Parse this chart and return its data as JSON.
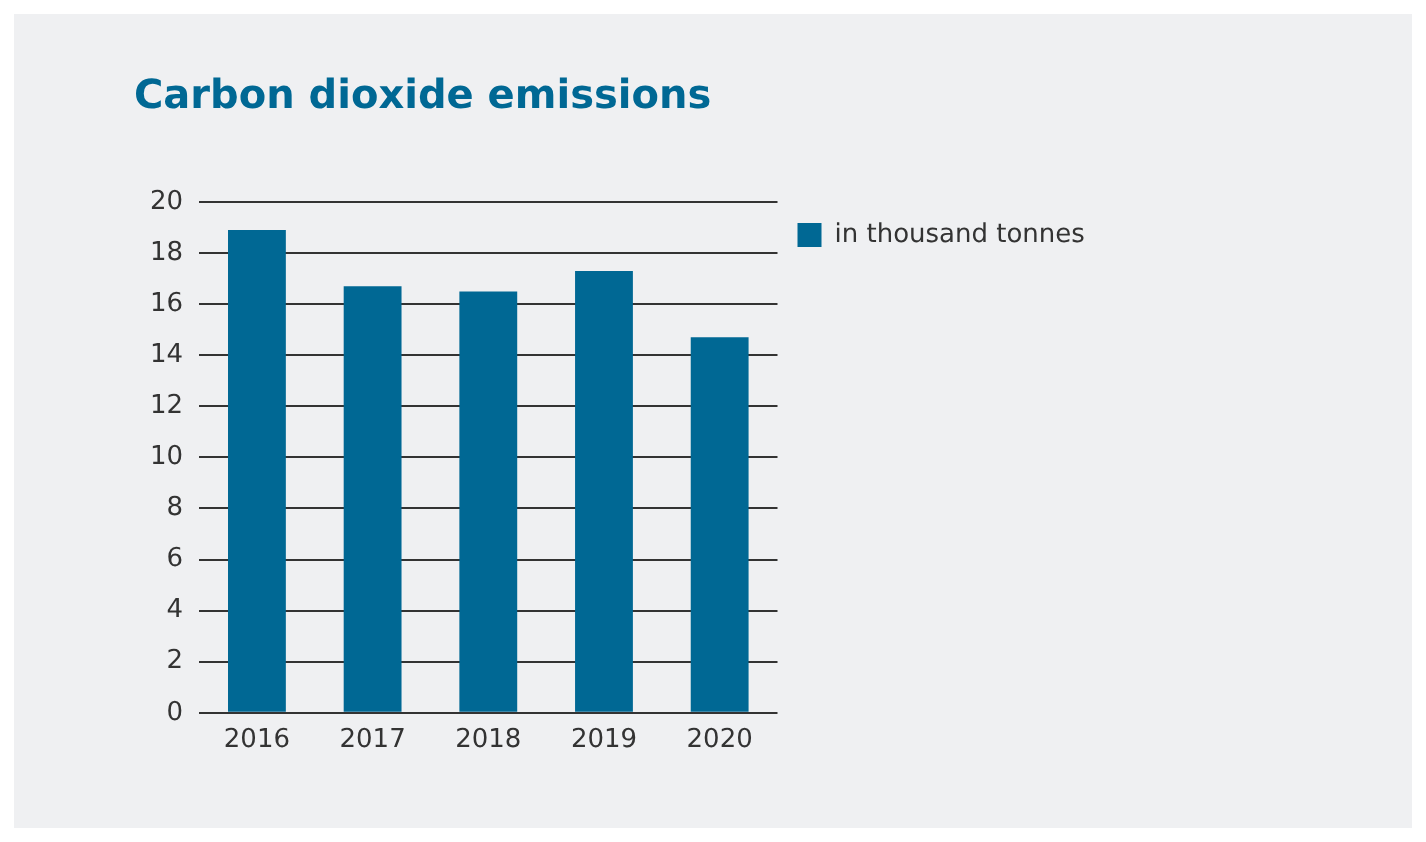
{
  "chart_data": {
    "type": "bar",
    "title": "Carbon dioxide emissions",
    "categories": [
      "2016",
      "2017",
      "2018",
      "2019",
      "2020"
    ],
    "series": [
      {
        "name": "in thousand tonnes",
        "color": "#006894",
        "values": [
          18.9,
          16.7,
          16.5,
          17.3,
          14.7
        ]
      }
    ],
    "ylim": [
      0,
      20
    ],
    "yticks": [
      0,
      2,
      4,
      6,
      8,
      10,
      12,
      14,
      16,
      18,
      20
    ],
    "grid": "y",
    "legend": "right"
  }
}
